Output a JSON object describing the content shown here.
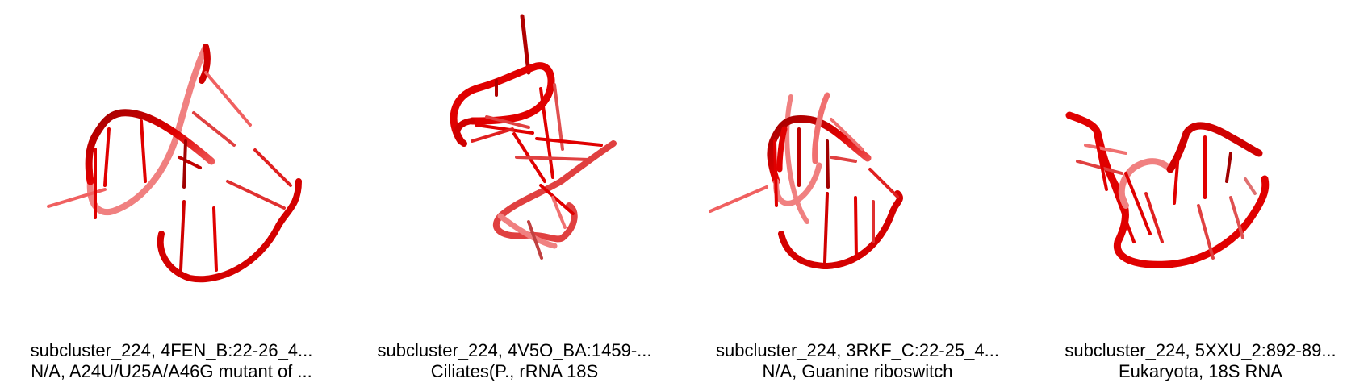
{
  "colors": {
    "rna_dark": "#b00000",
    "rna_main": "#e00000",
    "rna_light": "#f07070",
    "text": "#000000"
  },
  "panels": [
    {
      "icon": "rna-3d-structure",
      "line1": "subcluster_224, 4FEN_B:22-26_4...",
      "line2": "N/A, A24U/U25A/A46G mutant of ..."
    },
    {
      "icon": "rna-3d-structure",
      "line1": "subcluster_224, 4V5O_BA:1459-...",
      "line2": "Ciliates(P., rRNA 18S"
    },
    {
      "icon": "rna-3d-structure",
      "line1": "subcluster_224, 3RKF_C:22-25_4...",
      "line2": "N/A, Guanine riboswitch"
    },
    {
      "icon": "rna-3d-structure",
      "line1": "subcluster_224, 5XXU_2:892-89...",
      "line2": "Eukaryota, 18S RNA"
    }
  ]
}
